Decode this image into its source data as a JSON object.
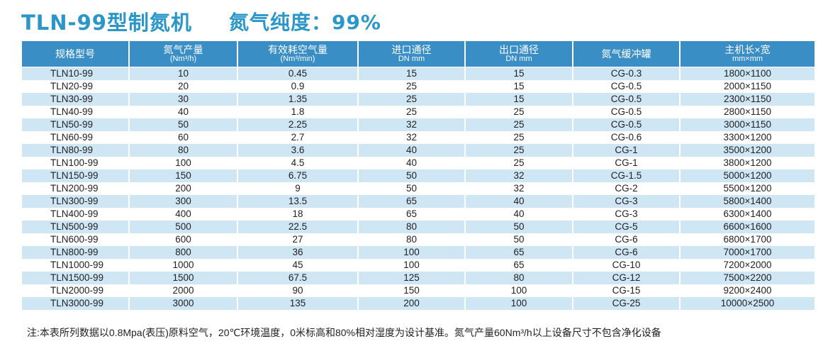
{
  "title": {
    "main": "TLN-99型制氮机",
    "purity": "氮气纯度：99%"
  },
  "table": {
    "headers": [
      {
        "label": "规格型号",
        "sub": ""
      },
      {
        "label": "氮气产量",
        "sub": "(Nm³/h)"
      },
      {
        "label": "有效耗空气量",
        "sub": "(Nm³/min)"
      },
      {
        "label": "进口通径",
        "sub": "DN mm"
      },
      {
        "label": "出口通径",
        "sub": "DN mm"
      },
      {
        "label": "氮气缓冲罐",
        "sub": ""
      },
      {
        "label": "主机长×宽",
        "sub": "mm×mm"
      }
    ],
    "rows": [
      [
        "TLN10-99",
        "10",
        "0.45",
        "15",
        "15",
        "CG-0.3",
        "1800×1100"
      ],
      [
        "TLN20-99",
        "20",
        "0.9",
        "25",
        "15",
        "CG-0.5",
        "2000×1150"
      ],
      [
        "TLN30-99",
        "30",
        "1.35",
        "25",
        "15",
        "CG-0.5",
        "2300×1150"
      ],
      [
        "TLN40-99",
        "40",
        "1.8",
        "25",
        "25",
        "CG-0.5",
        "2800×1150"
      ],
      [
        "TLN50-99",
        "50",
        "2.25",
        "32",
        "25",
        "CG-0.5",
        "3000×1150"
      ],
      [
        "TLN60-99",
        "60",
        "2.7",
        "32",
        "25",
        "CG-0.6",
        "3300×1200"
      ],
      [
        "TLN80-99",
        "80",
        "3.6",
        "40",
        "25",
        "CG-1",
        "3500×1200"
      ],
      [
        "TLN100-99",
        "100",
        "4.5",
        "40",
        "25",
        "CG-1",
        "3800×1200"
      ],
      [
        "TLN150-99",
        "150",
        "6.75",
        "50",
        "32",
        "CG-1.5",
        "5000×1200"
      ],
      [
        "TLN200-99",
        "200",
        "9",
        "50",
        "32",
        "CG-2",
        "5500×1200"
      ],
      [
        "TLN300-99",
        "300",
        "13.5",
        "65",
        "40",
        "CG-3",
        "5800×1400"
      ],
      [
        "TLN400-99",
        "400",
        "18",
        "65",
        "40",
        "CG-3",
        "6300×1400"
      ],
      [
        "TLN500-99",
        "500",
        "22.5",
        "80",
        "50",
        "CG-5",
        "6600×1600"
      ],
      [
        "TLN600-99",
        "600",
        "27",
        "80",
        "50",
        "CG-6",
        "6800×1700"
      ],
      [
        "TLN800-99",
        "800",
        "36",
        "100",
        "65",
        "CG-6",
        "7000×1700"
      ],
      [
        "TLN1000-99",
        "1000",
        "45",
        "100",
        "65",
        "CG-10",
        "7200×2000"
      ],
      [
        "TLN1500-99",
        "1500",
        "67.5",
        "125",
        "80",
        "CG-12",
        "7500×2200"
      ],
      [
        "TLN2000-99",
        "2000",
        "90",
        "150",
        "100",
        "CG-15",
        "9200×2400"
      ],
      [
        "TLN3000-99",
        "3000",
        "135",
        "200",
        "100",
        "CG-25",
        "10000×2500"
      ]
    ]
  },
  "note": "注:本表所列数据以0.8Mpa(表压)原料空气，20℃环境温度，0米标高和80%相对湿度为设计基准。氮气产量60Nm³/h以上设备尺寸不包含净化设备",
  "colors": {
    "title": "#2b97c9",
    "header_bg": "#3a8ec6",
    "stripe": "#cfe6f5"
  }
}
